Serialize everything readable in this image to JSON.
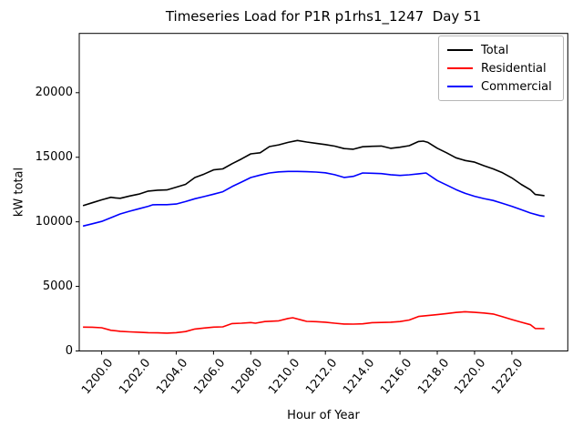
{
  "title": "Timeseries Load for P1R p1rhs1_1247  Day 51",
  "axes": {
    "xlabel": "Hour of Year",
    "ylabel": "kW total",
    "x_tick_values": [
      1200,
      1202,
      1204,
      1206,
      1208,
      1210,
      1212,
      1214,
      1216,
      1218,
      1220,
      1222
    ],
    "x_tick_labels": [
      "1200.0",
      "1202.0",
      "1204.0",
      "1206.0",
      "1208.0",
      "1210.0",
      "1212.0",
      "1214.0",
      "1216.0",
      "1218.0",
      "1220.0",
      "1222.0"
    ],
    "y_tick_values": [
      0,
      5000,
      10000,
      15000,
      20000
    ],
    "y_tick_labels": [
      "0",
      "5000",
      "10000",
      "15000",
      "20000"
    ]
  },
  "legend": {
    "items": [
      {
        "label": "Total",
        "color": "#000000"
      },
      {
        "label": "Residential",
        "color": "#ff0000"
      },
      {
        "label": "Commercial",
        "color": "#0000ff"
      }
    ]
  },
  "chart_data": {
    "type": "line",
    "title": "Timeseries Load for P1R p1rhs1_1247  Day 51",
    "xlabel": "Hour of Year",
    "ylabel": "kW total",
    "xlim": [
      1198.8,
      1225.0
    ],
    "ylim": [
      0,
      24590
    ],
    "x_ticks": [
      1200,
      1202,
      1204,
      1206,
      1208,
      1210,
      1212,
      1214,
      1216,
      1218,
      1220,
      1222
    ],
    "y_ticks": [
      0,
      5000,
      10000,
      15000,
      20000
    ],
    "grid": false,
    "legend_position": "upper right",
    "series": [
      {
        "name": "Total",
        "color": "#000000",
        "points": [
          [
            1199.0,
            11250
          ],
          [
            1199.5,
            11480
          ],
          [
            1200.0,
            11700
          ],
          [
            1200.5,
            11900
          ],
          [
            1200.75,
            11850
          ],
          [
            1201.0,
            11820
          ],
          [
            1201.5,
            12000
          ],
          [
            1202.0,
            12150
          ],
          [
            1202.5,
            12380
          ],
          [
            1203.0,
            12450
          ],
          [
            1203.5,
            12470
          ],
          [
            1204.0,
            12680
          ],
          [
            1204.5,
            12900
          ],
          [
            1205.0,
            13430
          ],
          [
            1205.5,
            13700
          ],
          [
            1206.0,
            14020
          ],
          [
            1206.5,
            14100
          ],
          [
            1207.0,
            14500
          ],
          [
            1207.5,
            14870
          ],
          [
            1208.0,
            15260
          ],
          [
            1208.5,
            15350
          ],
          [
            1209.0,
            15830
          ],
          [
            1209.5,
            15960
          ],
          [
            1210.0,
            16150
          ],
          [
            1210.5,
            16300
          ],
          [
            1211.0,
            16180
          ],
          [
            1211.5,
            16080
          ],
          [
            1212.0,
            15980
          ],
          [
            1212.5,
            15860
          ],
          [
            1213.0,
            15670
          ],
          [
            1213.5,
            15620
          ],
          [
            1214.0,
            15810
          ],
          [
            1214.5,
            15850
          ],
          [
            1215.0,
            15870
          ],
          [
            1215.5,
            15690
          ],
          [
            1216.0,
            15780
          ],
          [
            1216.5,
            15900
          ],
          [
            1217.0,
            16220
          ],
          [
            1217.25,
            16250
          ],
          [
            1217.5,
            16150
          ],
          [
            1218.0,
            15700
          ],
          [
            1218.5,
            15350
          ],
          [
            1219.0,
            14960
          ],
          [
            1219.5,
            14750
          ],
          [
            1220.0,
            14620
          ],
          [
            1220.5,
            14350
          ],
          [
            1221.0,
            14100
          ],
          [
            1221.5,
            13800
          ],
          [
            1222.0,
            13400
          ],
          [
            1222.5,
            12900
          ],
          [
            1223.0,
            12470
          ],
          [
            1223.25,
            12120
          ],
          [
            1223.75,
            12030
          ]
        ]
      },
      {
        "name": "Residential",
        "color": "#ff0000",
        "points": [
          [
            1199.0,
            1850
          ],
          [
            1199.5,
            1840
          ],
          [
            1200.0,
            1800
          ],
          [
            1200.5,
            1600
          ],
          [
            1201.0,
            1520
          ],
          [
            1201.5,
            1480
          ],
          [
            1202.0,
            1450
          ],
          [
            1202.5,
            1420
          ],
          [
            1203.0,
            1400
          ],
          [
            1203.5,
            1380
          ],
          [
            1204.0,
            1420
          ],
          [
            1204.5,
            1500
          ],
          [
            1205.0,
            1700
          ],
          [
            1205.5,
            1780
          ],
          [
            1206.0,
            1850
          ],
          [
            1206.5,
            1870
          ],
          [
            1207.0,
            2120
          ],
          [
            1207.5,
            2150
          ],
          [
            1208.0,
            2200
          ],
          [
            1208.25,
            2150
          ],
          [
            1208.75,
            2280
          ],
          [
            1209.0,
            2300
          ],
          [
            1209.5,
            2330
          ],
          [
            1210.0,
            2520
          ],
          [
            1210.25,
            2570
          ],
          [
            1210.75,
            2380
          ],
          [
            1211.0,
            2290
          ],
          [
            1211.5,
            2270
          ],
          [
            1212.0,
            2230
          ],
          [
            1212.5,
            2150
          ],
          [
            1213.0,
            2090
          ],
          [
            1213.5,
            2080
          ],
          [
            1214.0,
            2100
          ],
          [
            1214.5,
            2190
          ],
          [
            1215.0,
            2210
          ],
          [
            1215.5,
            2230
          ],
          [
            1216.0,
            2280
          ],
          [
            1216.5,
            2400
          ],
          [
            1217.0,
            2670
          ],
          [
            1217.5,
            2740
          ],
          [
            1218.0,
            2810
          ],
          [
            1218.5,
            2900
          ],
          [
            1219.0,
            2980
          ],
          [
            1219.5,
            3040
          ],
          [
            1220.0,
            2990
          ],
          [
            1220.5,
            2940
          ],
          [
            1221.0,
            2860
          ],
          [
            1221.5,
            2650
          ],
          [
            1222.0,
            2430
          ],
          [
            1222.5,
            2230
          ],
          [
            1223.0,
            2030
          ],
          [
            1223.25,
            1740
          ],
          [
            1223.75,
            1730
          ]
        ]
      },
      {
        "name": "Commercial",
        "color": "#0000ff",
        "points": [
          [
            1199.0,
            9670
          ],
          [
            1199.5,
            9850
          ],
          [
            1200.0,
            10030
          ],
          [
            1200.5,
            10320
          ],
          [
            1201.0,
            10610
          ],
          [
            1201.5,
            10820
          ],
          [
            1202.0,
            11010
          ],
          [
            1202.5,
            11200
          ],
          [
            1202.75,
            11320
          ],
          [
            1203.0,
            11330
          ],
          [
            1203.5,
            11330
          ],
          [
            1204.0,
            11380
          ],
          [
            1204.5,
            11570
          ],
          [
            1205.0,
            11790
          ],
          [
            1205.5,
            11960
          ],
          [
            1206.0,
            12140
          ],
          [
            1206.5,
            12330
          ],
          [
            1207.0,
            12730
          ],
          [
            1207.5,
            13080
          ],
          [
            1208.0,
            13430
          ],
          [
            1208.5,
            13620
          ],
          [
            1209.0,
            13780
          ],
          [
            1209.5,
            13870
          ],
          [
            1210.0,
            13900
          ],
          [
            1210.5,
            13900
          ],
          [
            1211.0,
            13880
          ],
          [
            1211.5,
            13850
          ],
          [
            1212.0,
            13800
          ],
          [
            1212.5,
            13650
          ],
          [
            1213.0,
            13440
          ],
          [
            1213.5,
            13520
          ],
          [
            1214.0,
            13780
          ],
          [
            1214.5,
            13760
          ],
          [
            1215.0,
            13730
          ],
          [
            1215.5,
            13650
          ],
          [
            1216.0,
            13590
          ],
          [
            1216.5,
            13640
          ],
          [
            1217.0,
            13720
          ],
          [
            1217.4,
            13780
          ],
          [
            1218.0,
            13200
          ],
          [
            1218.5,
            12850
          ],
          [
            1219.0,
            12500
          ],
          [
            1219.5,
            12200
          ],
          [
            1220.0,
            11980
          ],
          [
            1220.5,
            11800
          ],
          [
            1221.0,
            11650
          ],
          [
            1221.5,
            11430
          ],
          [
            1222.0,
            11200
          ],
          [
            1222.5,
            10950
          ],
          [
            1223.0,
            10680
          ],
          [
            1223.5,
            10480
          ],
          [
            1223.75,
            10420
          ]
        ]
      }
    ]
  }
}
